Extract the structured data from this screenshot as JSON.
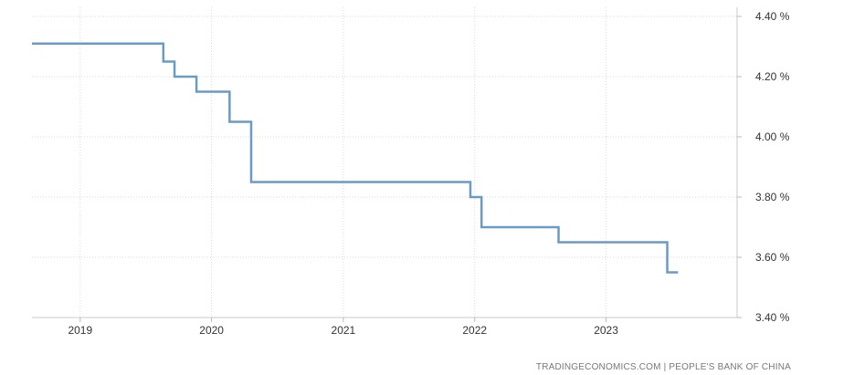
{
  "chart_data": {
    "type": "line",
    "step": true,
    "x_tick_labels": [
      "2019",
      "2020",
      "2021",
      "2022",
      "2023"
    ],
    "y_tick_labels": [
      "4.40 %",
      "4.20 %",
      "4.00 %",
      "3.80 %",
      "3.60 %",
      "3.40 %"
    ],
    "ylim": [
      3.4,
      4.4
    ],
    "xlim": [
      "2018-08-20",
      "2023-12-31"
    ],
    "grid": true,
    "y_axis_side": "right",
    "series": [
      {
        "color": "#6b9ac4",
        "points": [
          {
            "date": "2018-08-20",
            "value": 4.31
          },
          {
            "date": "2019-08-20",
            "value": 4.25
          },
          {
            "date": "2019-09-20",
            "value": 4.2
          },
          {
            "date": "2019-11-20",
            "value": 4.15
          },
          {
            "date": "2020-02-20",
            "value": 4.05
          },
          {
            "date": "2020-04-20",
            "value": 3.85
          },
          {
            "date": "2021-12-20",
            "value": 3.8
          },
          {
            "date": "2022-01-20",
            "value": 3.7
          },
          {
            "date": "2022-08-22",
            "value": 3.65
          },
          {
            "date": "2023-06-20",
            "value": 3.55
          },
          {
            "date": "2023-07-20",
            "value": 3.55
          }
        ]
      }
    ]
  },
  "source": "TRADINGECONOMICS.COM  |  PEOPLE'S BANK OF CHINA"
}
